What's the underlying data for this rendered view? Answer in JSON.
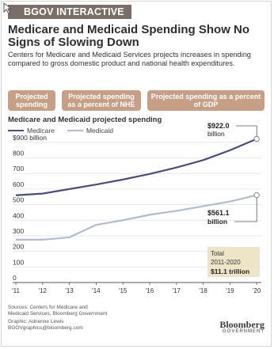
{
  "header": {
    "badge": "BGOV INTERACTIVE",
    "title": "Medicare and Medicaid Spending Show No Signs of Slowing Down",
    "subtitle": "Centers for Medicare and Medicaid Services projects increases in spending compared to gross domestic product and national health expenditures."
  },
  "tabs": [
    {
      "label": "Projected spending"
    },
    {
      "label": "Projected spending as a percent of NHE"
    },
    {
      "label": "Projected spending as a percent of GDP"
    }
  ],
  "chart_data": {
    "type": "line",
    "title": "Medicare and Medicaid projected spending",
    "x": [
      "'11",
      "'12",
      "'13",
      "'14",
      "'15",
      "'16",
      "'17",
      "'18",
      "'19",
      "'20"
    ],
    "series": [
      {
        "name": "Medicare",
        "values": [
          560,
          571,
          600,
          629,
          661,
          697,
          738,
          786,
          849,
          922.0
        ],
        "color": "#4a4e78"
      },
      {
        "name": "Medicaid",
        "values": [
          275,
          275,
          290,
          370,
          400,
          435,
          460,
          490,
          520,
          561.1
        ],
        "color": "#b2bccd"
      }
    ],
    "yticks": [
      {
        "value": 0,
        "label": "0"
      },
      {
        "value": 100,
        "label": "100"
      },
      {
        "value": 200,
        "label": "200"
      },
      {
        "value": 300,
        "label": "300"
      },
      {
        "value": 400,
        "label": "400"
      },
      {
        "value": 500,
        "label": "500"
      },
      {
        "value": 600,
        "label": "600"
      },
      {
        "value": 700,
        "label": "700"
      },
      {
        "value": 800,
        "label": "800"
      },
      {
        "value": 900,
        "label": "$900 billion"
      }
    ],
    "ylim": [
      0,
      950
    ],
    "grid": true,
    "annotations": {
      "medicare_end_value": "$922.0",
      "medicare_end_unit": "billion",
      "medicaid_end_value": "$561.1",
      "medicaid_end_unit": "billion",
      "total_line1": "Total",
      "total_line2": "2011-2020",
      "total_value": "$11.1 trillion"
    },
    "legend_position": "top-left"
  },
  "footer": {
    "sources_1": "Sources: Centers for Medicare and",
    "sources_2": "Medicaid Services, Bloomberg Government",
    "graphic": "Graphic: Adrienne Lewis",
    "email": "BGOVgraphics@bloomberg.com",
    "logo_1": "Bloomberg",
    "logo_2": "GOVERNMENT"
  },
  "colors": {
    "badge": "#7a6f68",
    "tab": "#c69f86",
    "medicare": "#4a4e78",
    "medicaid": "#b2bccd",
    "total_box": "#eee5c9"
  }
}
